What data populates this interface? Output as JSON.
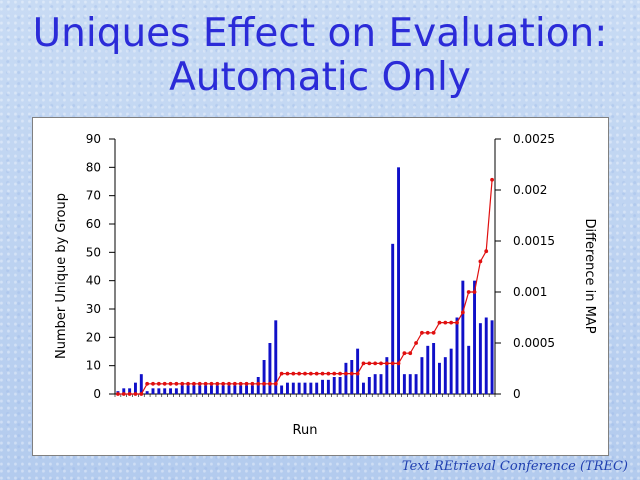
{
  "slide": {
    "title_line1": "Uniques Effect on Evaluation:",
    "title_line2": "Automatic Only",
    "footer": "Text REtrieval Conference (TREC)"
  },
  "colors": {
    "title": "#2b2bd8",
    "bars": "#1010c8",
    "line": "#e01010",
    "footer": "#1f3fb0"
  },
  "chart_data": {
    "type": "bar",
    "combo": "bar+line",
    "xlabel": "Run",
    "ylabel_left": "Number Unique by Group",
    "ylabel_right": "Difference in MAP",
    "ylim_left": [
      0,
      90
    ],
    "ylim_right": [
      0,
      0.0025
    ],
    "yticks_left": [
      "0",
      "10",
      "20",
      "30",
      "40",
      "50",
      "60",
      "70",
      "80",
      "90"
    ],
    "yticks_right": [
      "0",
      "0.0005",
      "0.001",
      "0.0015",
      "0.002",
      "0.0025"
    ],
    "grid": false,
    "series": [
      {
        "type": "bar",
        "axis": "left",
        "values": [
          1,
          2,
          2,
          4,
          7,
          1,
          2,
          2,
          2,
          2,
          2,
          3,
          3,
          3,
          3,
          3,
          3,
          3,
          3,
          3,
          3,
          3,
          3,
          3,
          6,
          12,
          18,
          26,
          3,
          4,
          4,
          4,
          4,
          4,
          4,
          5,
          5,
          6,
          6,
          11,
          12,
          16,
          4,
          6,
          7,
          7,
          13,
          53,
          80,
          7,
          7,
          7,
          13,
          17,
          18,
          11,
          13,
          16,
          27,
          40,
          17,
          40,
          25,
          27,
          26
        ]
      },
      {
        "type": "line",
        "axis": "right",
        "values": [
          0,
          0,
          0,
          0,
          0,
          0.0001,
          0.0001,
          0.0001,
          0.0001,
          0.0001,
          0.0001,
          0.0001,
          0.0001,
          0.0001,
          0.0001,
          0.0001,
          0.0001,
          0.0001,
          0.0001,
          0.0001,
          0.0001,
          0.0001,
          0.0001,
          0.0001,
          0.0001,
          0.0001,
          0.0001,
          0.0001,
          0.0002,
          0.0002,
          0.0002,
          0.0002,
          0.0002,
          0.0002,
          0.0002,
          0.0002,
          0.0002,
          0.0002,
          0.0002,
          0.0002,
          0.0002,
          0.0002,
          0.0003,
          0.0003,
          0.0003,
          0.0003,
          0.0003,
          0.0003,
          0.0003,
          0.0004,
          0.0004,
          0.0005,
          0.0006,
          0.0006,
          0.0006,
          0.0007,
          0.0007,
          0.0007,
          0.0007,
          0.0008,
          0.001,
          0.001,
          0.0013,
          0.0014,
          0.0021
        ]
      }
    ]
  }
}
